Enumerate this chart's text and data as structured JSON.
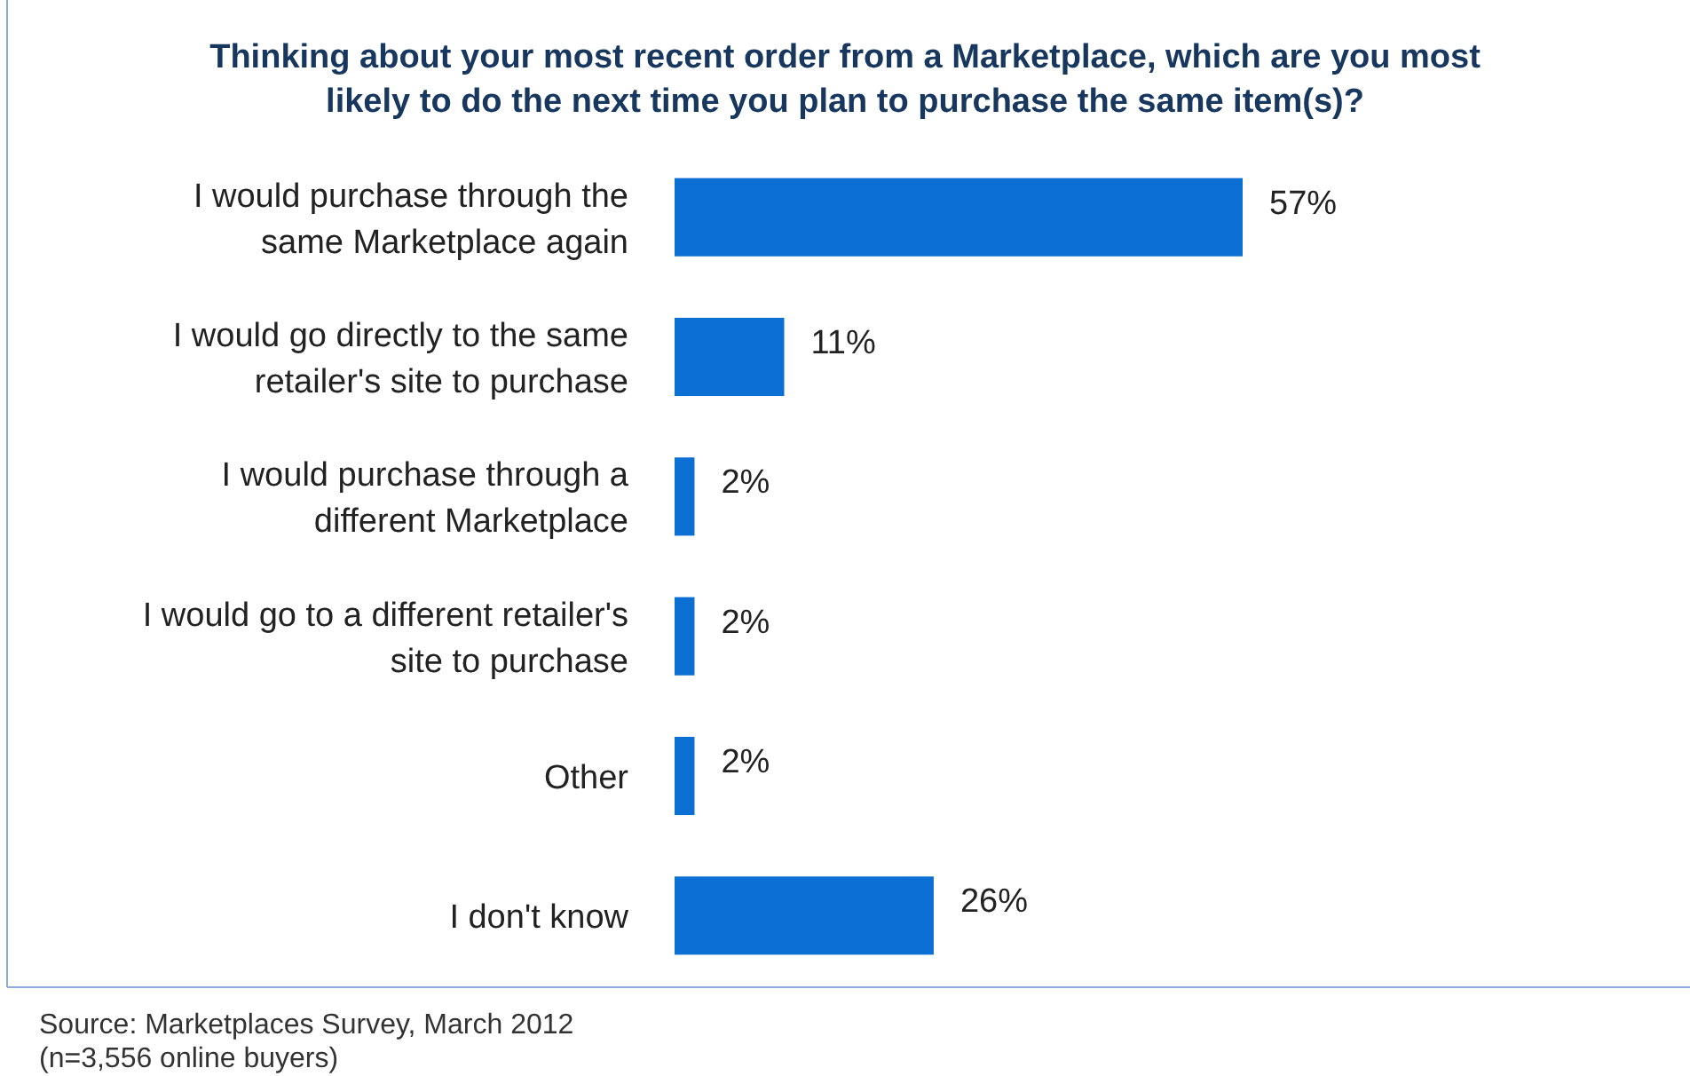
{
  "chart_data": {
    "type": "bar",
    "orientation": "horizontal",
    "title": "Thinking about your most recent order from a Marketplace, which are you most likely to do the next time you plan to purchase the same item(s)?",
    "categories": [
      "I would purchase through the\nsame Marketplace again",
      "I would go directly to the same\nretailer's site to purchase",
      "I would purchase through a\ndifferent Marketplace",
      "I would go to a different retailer's\nsite to purchase",
      "Other",
      "I don't know"
    ],
    "values": [
      57,
      11,
      2,
      2,
      2,
      26
    ],
    "value_labels": [
      "57%",
      "11%",
      "2%",
      "2%",
      "2%",
      "26%"
    ],
    "color": "#0b6fd3",
    "annotations": [
      "Source: Marketplaces Survey, March 2012",
      "(n=3,556 online buyers)"
    ]
  }
}
